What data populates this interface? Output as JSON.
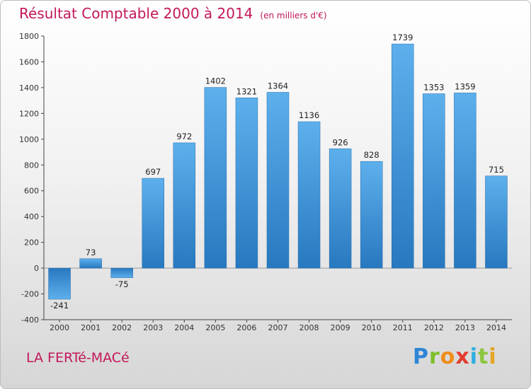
{
  "chart_data": {
    "type": "bar",
    "title": "Résultat Comptable 2000 à 2014",
    "unit": "(en milliers d'€)",
    "categories": [
      "2000",
      "2001",
      "2002",
      "2003",
      "2004",
      "2005",
      "2006",
      "2007",
      "2008",
      "2009",
      "2010",
      "2011",
      "2012",
      "2013",
      "2014"
    ],
    "values": [
      -241,
      73,
      -75,
      697,
      972,
      1402,
      1321,
      1364,
      1136,
      926,
      828,
      1739,
      1353,
      1359,
      715
    ],
    "ylim": [
      -400,
      1800
    ],
    "yticks": [
      -400,
      -200,
      0,
      200,
      400,
      600,
      800,
      1000,
      1200,
      1400,
      1600,
      1800
    ],
    "grid": false,
    "bar_color": "#3d95d6"
  },
  "town_name": "LA FERTé-MACé",
  "logo": {
    "p": "P",
    "r": "r",
    "o": "o",
    "x": "x",
    "i1": "i",
    "t": "t",
    "i2": "i"
  }
}
